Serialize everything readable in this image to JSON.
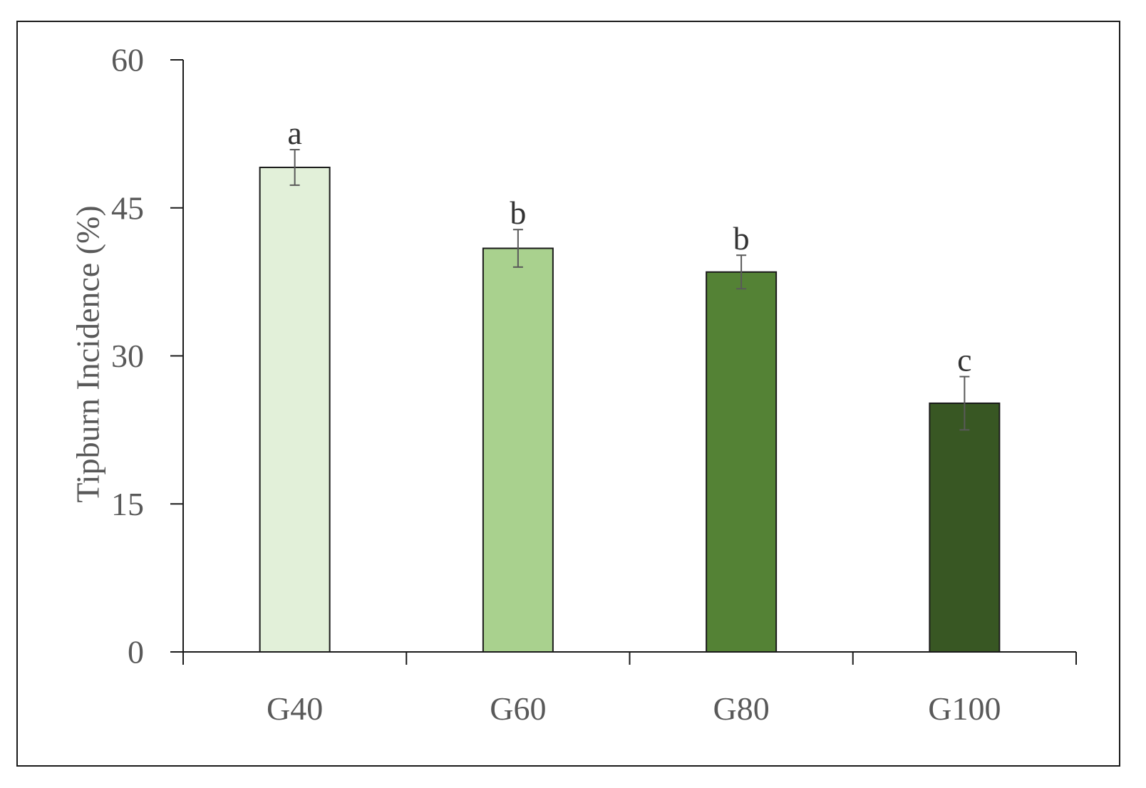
{
  "chart_data": {
    "type": "bar",
    "title": "",
    "xlabel": "",
    "ylabel": "Tipburn Incidence (%)",
    "ylim": [
      0,
      60
    ],
    "yticks": [
      "0",
      "15",
      "30",
      "45",
      "60"
    ],
    "categories": [
      "G40",
      "G60",
      "G80",
      "G100"
    ],
    "values": [
      49.1,
      40.9,
      38.5,
      25.2
    ],
    "errors": [
      1.8,
      1.9,
      1.7,
      2.7
    ],
    "significance_letters": [
      "a",
      "b",
      "b",
      "c"
    ],
    "colors": [
      "#e2f0d9",
      "#a9d18e",
      "#548235",
      "#385723"
    ],
    "grid": false,
    "legend": false
  }
}
